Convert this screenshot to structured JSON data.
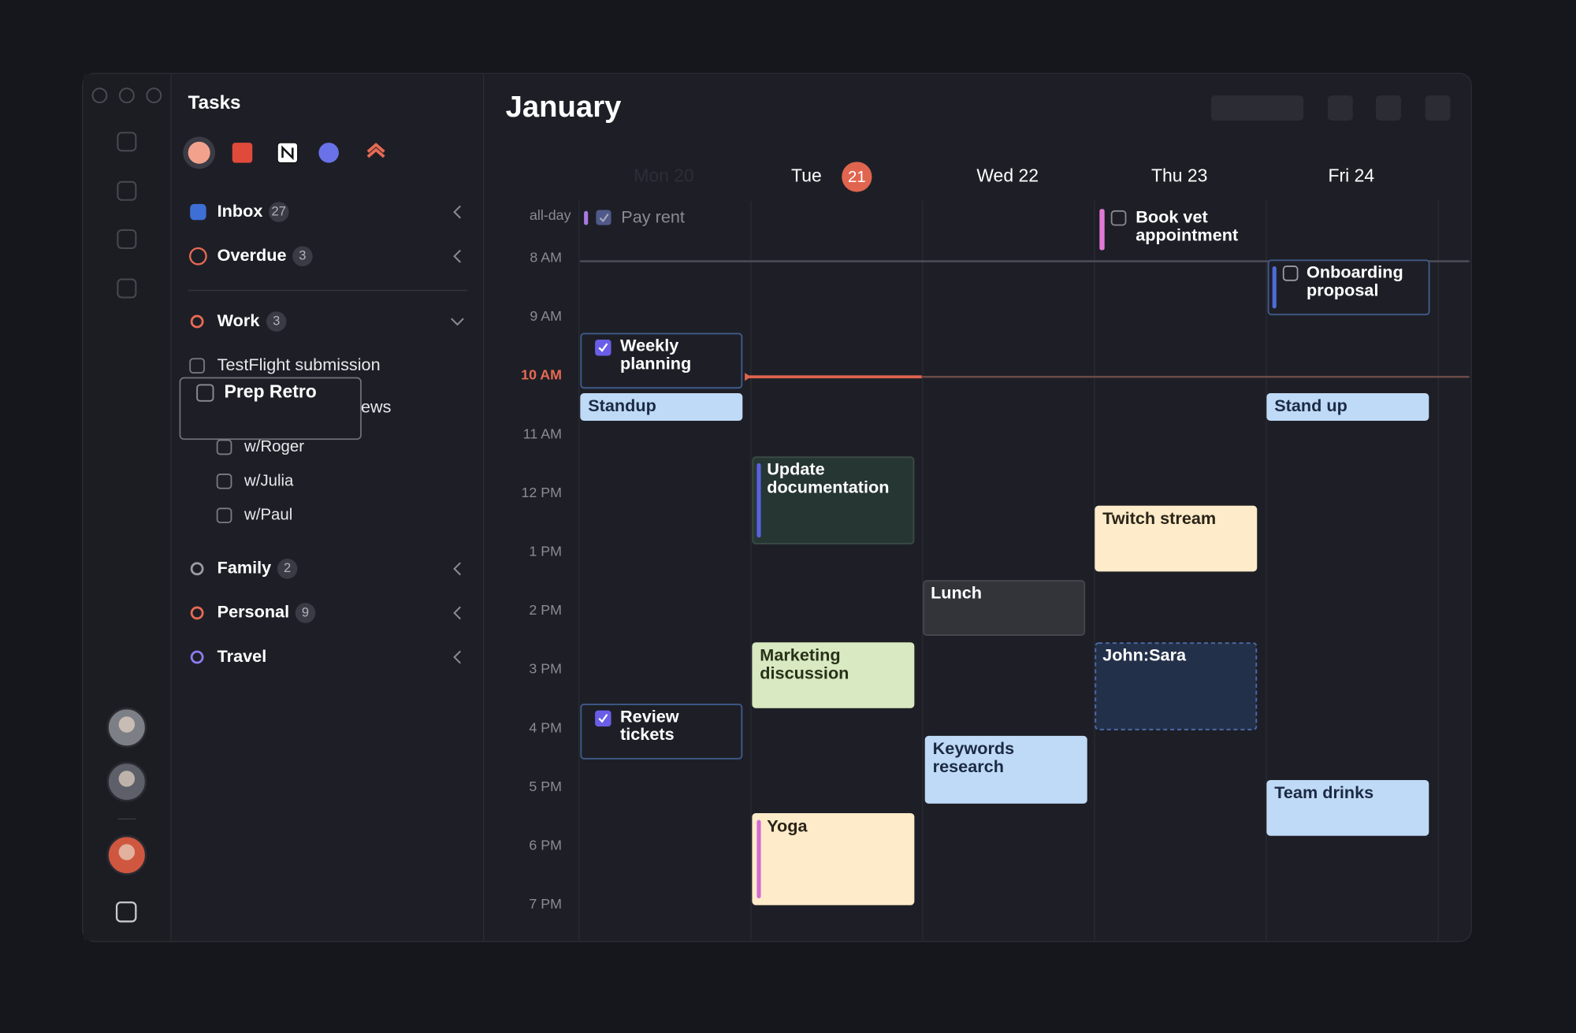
{
  "sidebar": {
    "title": "Tasks",
    "lists": [
      {
        "name": "Inbox",
        "count": 27
      },
      {
        "name": "Overdue",
        "count": 3
      }
    ],
    "projects": [
      {
        "name": "Work",
        "count": 3,
        "tasks": [
          "TestFlight submission",
          "ews"
        ],
        "subtasks": [
          "w/Roger",
          "w/Julia",
          "w/Paul"
        ]
      },
      {
        "name": "Family",
        "count": 2
      },
      {
        "name": "Personal",
        "count": 9
      },
      {
        "name": "Travel"
      }
    ],
    "dragged_task": "Prep Retro"
  },
  "calendar": {
    "month": "January",
    "days": [
      {
        "label": "Mon 20"
      },
      {
        "label": "Tue",
        "date": 21
      },
      {
        "label": "Wed 22"
      },
      {
        "label": "Thu 23"
      },
      {
        "label": "Fri 24"
      }
    ],
    "all_day_label": "all-day",
    "all_day": [
      {
        "title": [
          "Pay rent"
        ]
      },
      {
        "title": [
          "Book vet",
          "appointment"
        ]
      }
    ],
    "hours": [
      "8 AM",
      "9 AM",
      "10 AM",
      "11 AM",
      "12 PM",
      "1 PM",
      "2 PM",
      "3 PM",
      "4 PM",
      "5 PM",
      "6 PM",
      "7 PM"
    ],
    "events": [
      {
        "title": [
          "Onboarding",
          "proposal"
        ]
      },
      {
        "title": [
          "Weekly",
          "planning"
        ]
      },
      {
        "title": [
          "Standup"
        ]
      },
      {
        "title": [
          "Stand up"
        ]
      },
      {
        "title": [
          "Update",
          "documentation"
        ]
      },
      {
        "title": [
          "Twitch stream"
        ]
      },
      {
        "title": [
          "Lunch"
        ]
      },
      {
        "title": [
          "Marketing",
          "discussion"
        ]
      },
      {
        "title": [
          "John:Sara"
        ]
      },
      {
        "title": [
          "Review",
          "tickets"
        ]
      },
      {
        "title": [
          "Keywords",
          "research"
        ]
      },
      {
        "title": [
          "Team drinks"
        ]
      },
      {
        "title": [
          "Yoga"
        ]
      }
    ]
  }
}
